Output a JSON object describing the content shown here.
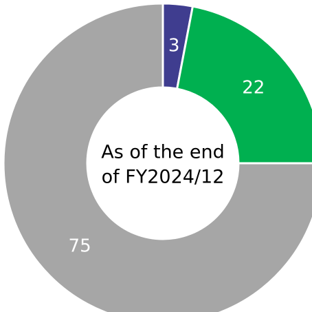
{
  "chart_data": {
    "type": "donut",
    "categories": [
      null,
      null,
      null
    ],
    "values": [
      3,
      22,
      75
    ],
    "colors": [
      "#3f3d8f",
      "#00b050",
      "#a6a6a6"
    ],
    "center_text": [
      "As of the end",
      "of FY2024/12"
    ]
  }
}
